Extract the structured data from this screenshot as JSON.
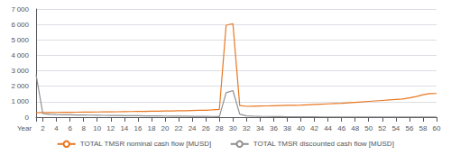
{
  "chart_data": {
    "type": "line",
    "x": [
      1,
      2,
      3,
      4,
      5,
      6,
      7,
      8,
      9,
      10,
      11,
      12,
      13,
      14,
      15,
      16,
      17,
      18,
      19,
      20,
      21,
      22,
      23,
      24,
      25,
      26,
      27,
      28,
      29,
      30,
      31,
      32,
      33,
      34,
      35,
      36,
      37,
      38,
      39,
      40,
      41,
      42,
      43,
      44,
      45,
      46,
      47,
      48,
      49,
      50,
      51,
      52,
      53,
      54,
      55,
      56,
      57,
      58,
      59,
      60
    ],
    "series": [
      {
        "name": "TOTAL TMSR nominal cash flow [MUSD]",
        "color": "#E87722",
        "values": [
          290,
          295,
          300,
          305,
          310,
          315,
          320,
          325,
          330,
          335,
          340,
          345,
          350,
          360,
          365,
          370,
          375,
          385,
          390,
          400,
          405,
          415,
          420,
          430,
          440,
          450,
          470,
          500,
          5950,
          6050,
          750,
          700,
          710,
          720,
          730,
          740,
          750,
          760,
          770,
          780,
          800,
          820,
          840,
          860,
          880,
          900,
          930,
          960,
          990,
          1020,
          1050,
          1080,
          1110,
          1140,
          1170,
          1250,
          1330,
          1450,
          1520,
          1530
        ]
      },
      {
        "name": "TOTAL TMSR discounted cash flow [MUSD]",
        "color": "#909090",
        "values": [
          2750,
          220,
          180,
          165,
          155,
          148,
          142,
          136,
          130,
          124,
          118,
          112,
          106,
          100,
          95,
          90,
          85,
          80,
          76,
          72,
          68,
          64,
          60,
          56,
          52,
          48,
          44,
          40,
          1580,
          1720,
          200,
          80,
          60,
          50,
          45,
          40,
          35,
          30,
          25,
          22,
          20,
          18,
          16,
          15,
          14,
          13,
          12,
          11,
          10,
          9,
          8,
          8,
          7,
          6,
          6,
          5,
          5,
          4,
          4,
          3
        ]
      }
    ],
    "xlim": [
      1,
      60
    ],
    "xticks": [
      {
        "value": 1,
        "label": "Year"
      },
      2,
      4,
      6,
      8,
      10,
      12,
      14,
      16,
      18,
      20,
      22,
      24,
      26,
      28,
      30,
      32,
      34,
      36,
      38,
      40,
      42,
      44,
      46,
      48,
      50,
      52,
      54,
      56,
      58,
      60
    ],
    "ylim": [
      0,
      7000
    ],
    "yticks": [
      0,
      {
        "value": 1000,
        "label": "1 000"
      },
      {
        "value": 2000,
        "label": "2 000"
      },
      {
        "value": 3000,
        "label": "3 000"
      },
      {
        "value": 4000,
        "label": "4 000"
      },
      {
        "value": 5000,
        "label": "5 000"
      },
      {
        "value": 6000,
        "label": "6 000"
      },
      {
        "value": 7000,
        "label": "7 000"
      }
    ],
    "grid": true,
    "legend": "bottom"
  }
}
